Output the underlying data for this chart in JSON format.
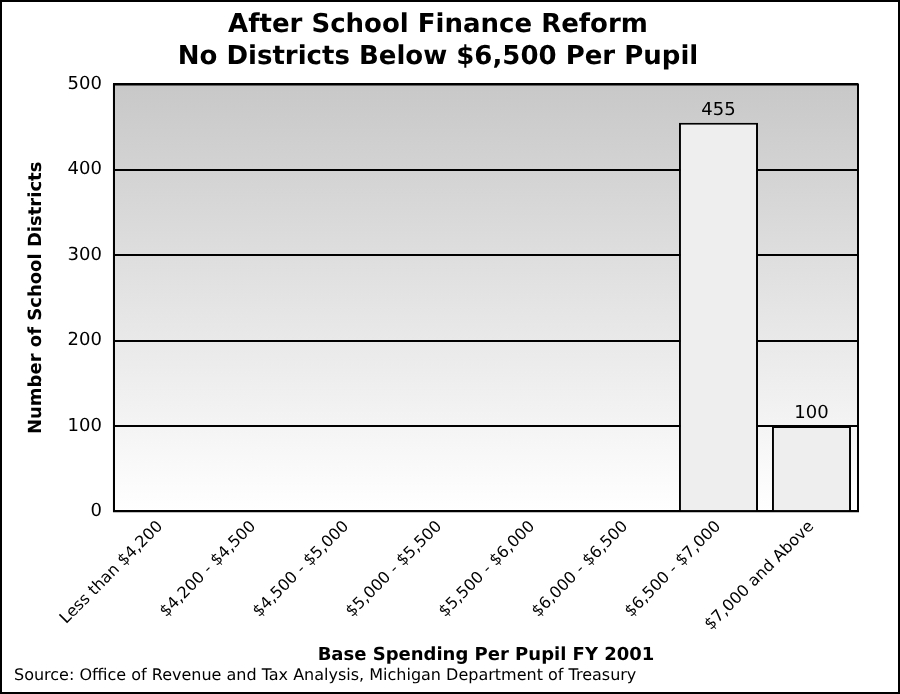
{
  "chart_data": {
    "type": "bar",
    "title": "After School Finance Reform\nNo Districts Below $6,500 Per Pupil",
    "xlabel": "Base Spending Per Pupil FY 2001",
    "ylabel": "Number of School Districts",
    "categories": [
      "Less than $4,200",
      "$4,200 - $4,500",
      "$4,500 - $5,000",
      "$5,000 - $5,500",
      "$5,500 - $6,000",
      "$6,000 - $6,500",
      "$6,500 - $7,000",
      "$7,000 and Above"
    ],
    "values": [
      0,
      0,
      0,
      0,
      0,
      0,
      455,
      100
    ],
    "value_labels": [
      null,
      null,
      null,
      null,
      null,
      null,
      "455",
      "100"
    ],
    "color": "#eeeeee",
    "ylim": [
      0,
      500
    ],
    "yticks": [
      0,
      100,
      200,
      300,
      400,
      500
    ],
    "grid": "y",
    "legend": false,
    "annotations": [
      "Source: Office of Revenue and Tax Analysis, Michigan Department of Treasury"
    ]
  }
}
